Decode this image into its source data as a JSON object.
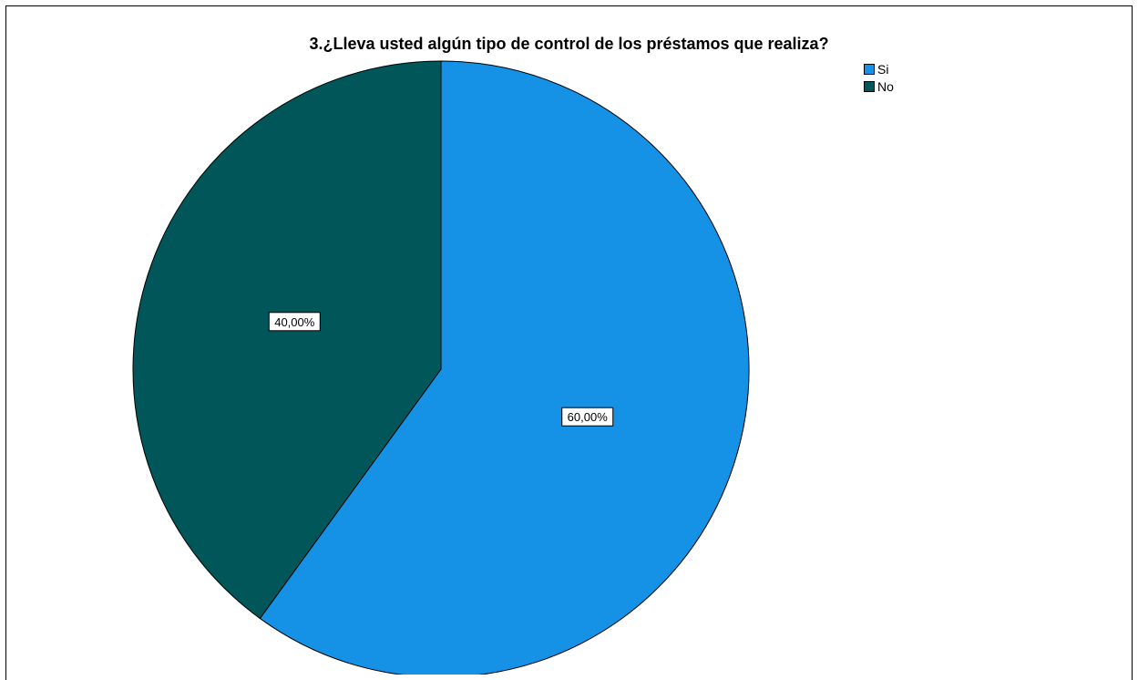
{
  "chart_data": {
    "type": "pie",
    "title": "3.¿Lleva usted algún tipo de control de los préstamos que realiza?",
    "categories": [
      "Si",
      "No"
    ],
    "values": [
      60.0,
      40.0
    ],
    "value_labels": [
      "60,00%",
      "40,00%"
    ],
    "colors": [
      "#1591e6",
      "#005658"
    ],
    "legend_position": "top-right",
    "start_angle_deg": 0,
    "direction": "clockwise"
  }
}
